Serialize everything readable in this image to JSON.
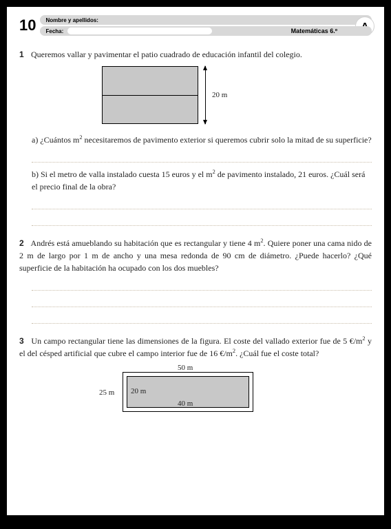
{
  "header": {
    "page_number": "10",
    "name_label": "Nombre y apellidos:",
    "date_label": "Fecha:",
    "subject": "Matemáticas 6.º",
    "badge": "A",
    "colors": {
      "field_bg": "#d8d8d8",
      "pill_bg": "#ffffff"
    }
  },
  "problems": [
    {
      "num": "1",
      "intro": "Queremos vallar y pavimentar el patio cuadrado de educación infantil del colegio.",
      "figure": {
        "type": "square_split",
        "side_label": "20 m",
        "fill": "#c8c8c8",
        "border": "#000000"
      },
      "parts": [
        {
          "letter": "a)",
          "text": "¿Cuántos m² necesitaremos de pavimento exterior si queremos cubrir solo la mitad de su superficie?"
        },
        {
          "letter": "b)",
          "text": "Si el metro de valla instalado cuesta 15 euros y el m² de pavimento instalado, 21 euros. ¿Cuál será el precio final de la obra?"
        }
      ]
    },
    {
      "num": "2",
      "intro": "Andrés está amueblando su habitación que es rectangular y tiene 4 m². Quiere poner una cama nido de 2 m de largo por 1 m de ancho y una mesa redonda de 90 cm de diámetro. ¿Puede hacerlo? ¿Qué superficie de la habitación ha ocupado con los dos muebles?"
    },
    {
      "num": "3",
      "intro": "Un campo rectangular tiene las dimensiones de la figura. El coste del vallado exterior fue de 5 €/m² y el del césped artificial que cubre el campo interior fue de 16 €/m². ¿Cuál fue el coste total?",
      "figure": {
        "type": "nested_rect",
        "outer_w": "50 m",
        "outer_h": "25 m",
        "inner_w": "40 m",
        "inner_h": "20 m",
        "fill": "#c8c8c8",
        "border": "#000000"
      }
    }
  ],
  "style": {
    "dotted_line_color": "#c8bca8",
    "text_color": "#222222",
    "page_bg": "#ffffff",
    "frame_bg": "#000000"
  }
}
